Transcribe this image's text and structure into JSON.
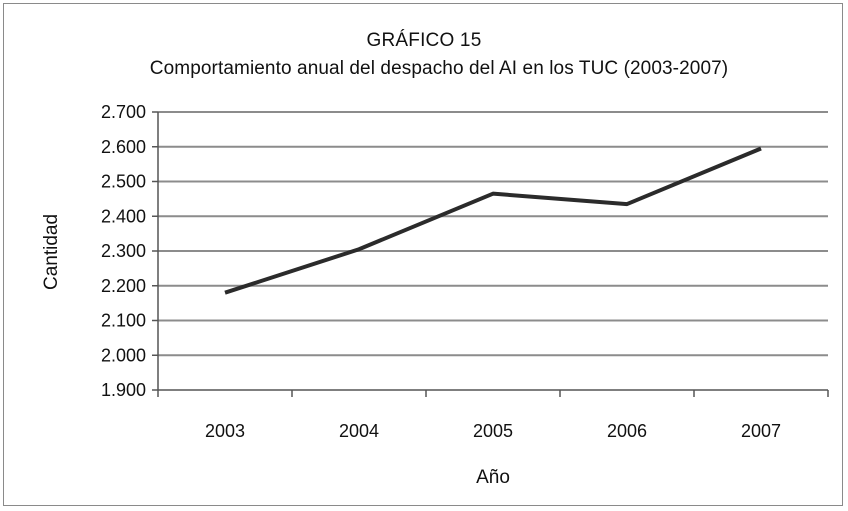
{
  "chart_data": {
    "type": "line",
    "title": "GRÁFICO 15",
    "subtitle": "Comportamiento anual del despacho del AI en los TUC (2003-2007)",
    "xlabel": "Año",
    "ylabel": "Cantidad",
    "categories": [
      "2003",
      "2004",
      "2005",
      "2006",
      "2007"
    ],
    "series": [
      {
        "values": [
          2180,
          2305,
          2465,
          2435,
          2595
        ]
      }
    ],
    "ylim": [
      1900,
      2700
    ],
    "yticks": [
      1900,
      2000,
      2100,
      2200,
      2300,
      2400,
      2500,
      2600,
      2700
    ],
    "ytick_labels": [
      "1.900",
      "2.000",
      "2.100",
      "2.200",
      "2.300",
      "2.400",
      "2.500",
      "2.600",
      "2.700"
    ],
    "grid": true,
    "legend": "none",
    "colors": {
      "line": "#2b2b2b",
      "grid": "#8c8c8c",
      "axis": "#555555"
    }
  }
}
